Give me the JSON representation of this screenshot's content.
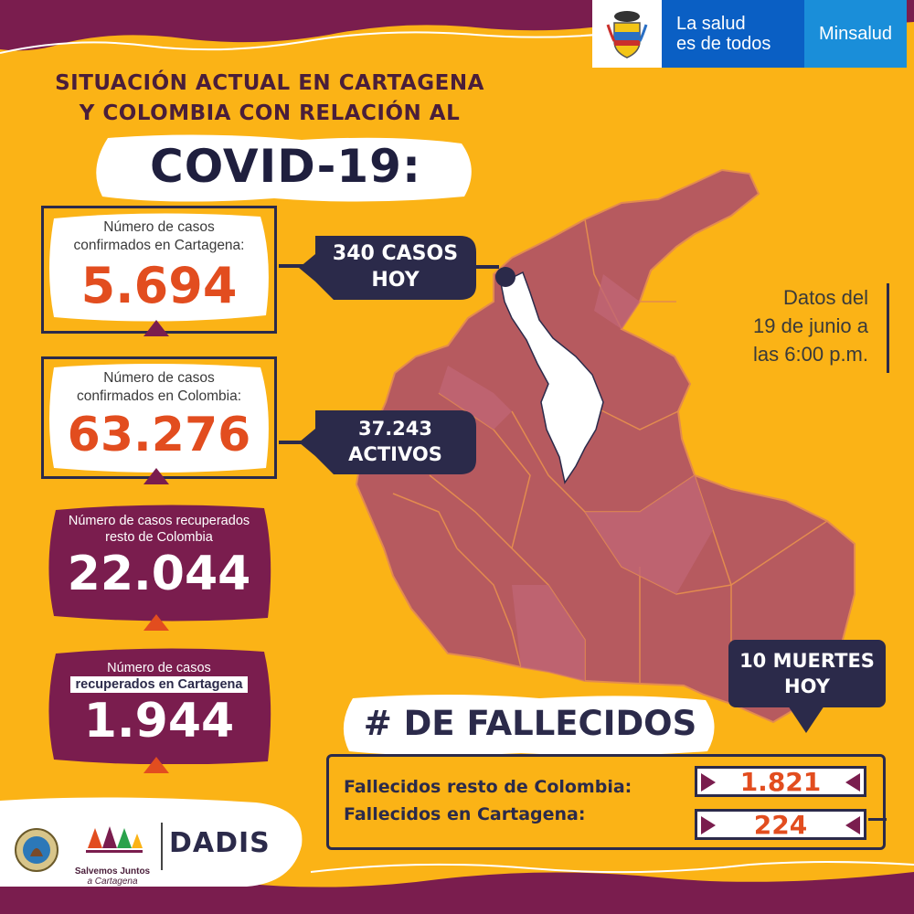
{
  "header": {
    "title_line1": "SITUACIÓN ACTUAL EN CARTAGENA",
    "title_line2": "Y COLOMBIA CON RELACIÓN AL",
    "covid": "COVID-19:"
  },
  "branding": {
    "slogan_line1": "La salud",
    "slogan_line2": "es de todos",
    "ministry": "Minsalud",
    "seal_icon": "colombia-coat-of-arms-icon"
  },
  "cards": {
    "cartagena_confirmed": {
      "label_line1": "Número de casos",
      "label_line2": "confirmados en Cartagena:",
      "value": "5.694"
    },
    "colombia_confirmed": {
      "label_line1": "Número de casos",
      "label_line2": "confirmados en Colombia:",
      "value": "63.276"
    },
    "colombia_recovered": {
      "label_line1": "Número de casos recuperados",
      "label_line2": "resto de Colombia",
      "value": "22.044"
    },
    "cartagena_recovered": {
      "label_line1": "Número de casos",
      "label_line2": "recuperados en Cartagena",
      "value": "1.944"
    }
  },
  "callouts": {
    "cases_today_line1": "340 CASOS",
    "cases_today_line2": "HOY",
    "active_line1": "37.243",
    "active_line2": "ACTIVOS"
  },
  "date": {
    "line1": "Datos del",
    "line2": "19 de junio a",
    "line3": "las 6:00 p.m."
  },
  "deaths": {
    "today_line1": "10 MUERTES",
    "today_line2": "HOY",
    "title": "# DE FALLECIDOS",
    "rest_label": "Fallecidos resto de Colombia:",
    "rest_value": "1.821",
    "cartagena_label": "Fallecidos en Cartagena:",
    "cartagena_value": "224"
  },
  "logos": {
    "salvemos_line1": "Salvemos Juntos",
    "salvemos_line2": "a Cartagena",
    "dadis": "DADIS"
  },
  "colors": {
    "background": "#fbb316",
    "plum": "#7a1d4e",
    "navy": "#2b2a4a",
    "orange": "#e24d1f",
    "map": "#b65a5f",
    "bolivar": "#ffffff"
  }
}
